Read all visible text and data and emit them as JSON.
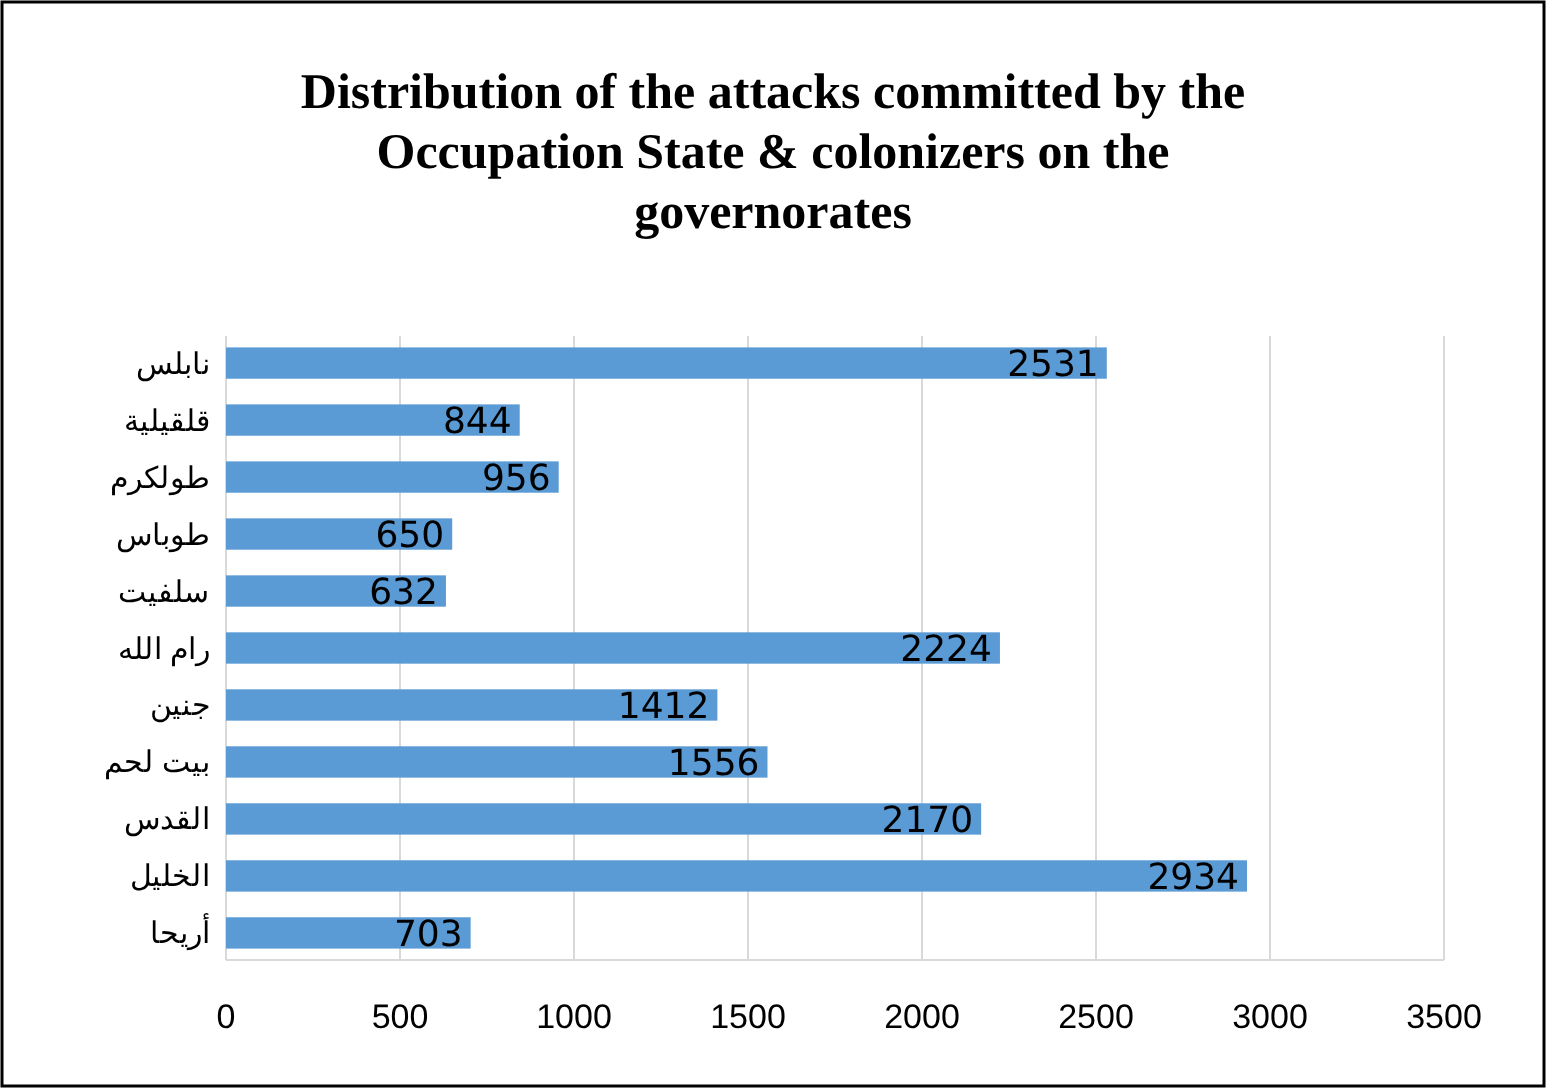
{
  "chart_data": {
    "type": "bar",
    "orientation": "horizontal",
    "title": "Distribution of the attacks committed by the Occupation State & colonizers on the governorates",
    "categories": [
      "نابلس",
      "قلقيلية",
      "طولكرم",
      "طوباس",
      "سلفيت",
      "رام الله",
      "جنين",
      "بيت لحم",
      "القدس",
      "الخليل",
      "أريحا"
    ],
    "values": [
      2531,
      844,
      956,
      650,
      632,
      2224,
      1412,
      1556,
      2170,
      2934,
      703
    ],
    "color": "#5b9bd5",
    "xlim": [
      0,
      3500
    ],
    "xticks": [
      0,
      500,
      1000,
      1500,
      2000,
      2500,
      3000,
      3500
    ],
    "grid": "x",
    "data_labels": true
  }
}
